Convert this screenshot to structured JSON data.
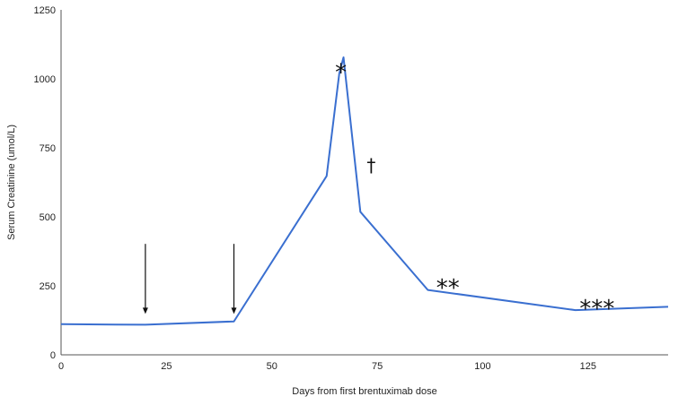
{
  "chart_data": {
    "type": "line",
    "title": "",
    "xlabel": "Days from first brentuximab dose",
    "ylabel": "Serum Creatinine (umol/L)",
    "xlim": [
      0,
      144
    ],
    "ylim": [
      0,
      1250
    ],
    "xticks": [
      0,
      25,
      50,
      75,
      100,
      125
    ],
    "yticks": [
      0,
      250,
      500,
      750,
      1000,
      1250
    ],
    "grid": false,
    "legend": "none",
    "series": [
      {
        "color": "#3a6fd0",
        "x": [
          0,
          20,
          41,
          63,
          66,
          67,
          71,
          87,
          122,
          144
        ],
        "y": [
          111,
          109,
          121,
          648,
          1020,
          1078,
          518,
          235,
          162,
          174
        ]
      }
    ],
    "arrows": [
      {
        "x": 20,
        "y_top": 402,
        "y_bottom": 148
      },
      {
        "x": 41,
        "y_top": 402,
        "y_bottom": 148
      }
    ],
    "annotations": [
      {
        "text": "*",
        "x": 65,
        "y": 1040
      },
      {
        "text": "†",
        "x": 72.5,
        "y": 690
      },
      {
        "text": "**",
        "x": 89,
        "y": 260
      },
      {
        "text": "***",
        "x": 123,
        "y": 185
      }
    ]
  }
}
